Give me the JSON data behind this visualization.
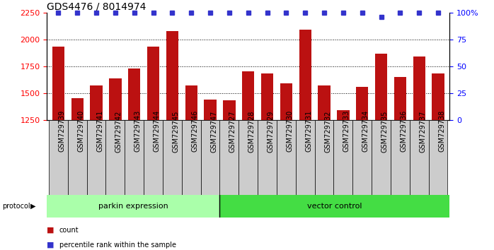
{
  "title": "GDS4476 / 8014974",
  "samples": [
    "GSM729739",
    "GSM729740",
    "GSM729741",
    "GSM729742",
    "GSM729743",
    "GSM729744",
    "GSM729745",
    "GSM729746",
    "GSM729747",
    "GSM729727",
    "GSM729728",
    "GSM729729",
    "GSM729730",
    "GSM729731",
    "GSM729732",
    "GSM729733",
    "GSM729734",
    "GSM729735",
    "GSM729736",
    "GSM729737",
    "GSM729738"
  ],
  "counts": [
    1930,
    1450,
    1570,
    1640,
    1730,
    1930,
    2080,
    1570,
    1440,
    1435,
    1700,
    1680,
    1590,
    2090,
    1570,
    1340,
    1560,
    1870,
    1650,
    1840,
    1680
  ],
  "percentile_ranks": [
    100,
    100,
    100,
    100,
    100,
    100,
    100,
    100,
    100,
    100,
    100,
    100,
    100,
    100,
    100,
    100,
    100,
    96,
    100,
    100,
    100
  ],
  "group1_label": "parkin expression",
  "group2_label": "vector control",
  "group1_count": 9,
  "group2_count": 12,
  "ylim_left": [
    1250,
    2250
  ],
  "ylim_right": [
    0,
    100
  ],
  "yticks_left": [
    1250,
    1500,
    1750,
    2000,
    2250
  ],
  "yticks_right": [
    0,
    25,
    50,
    75,
    100
  ],
  "bar_color": "#bb1111",
  "dot_color": "#3333cc",
  "group1_bg": "#aaffaa",
  "group2_bg": "#44dd44",
  "xlabel_bg": "#cccccc",
  "protocol_label": "protocol",
  "legend_count_label": "count",
  "legend_pct_label": "percentile rank within the sample",
  "title_fontsize": 10,
  "tick_label_fontsize": 7,
  "legend_fontsize": 8
}
